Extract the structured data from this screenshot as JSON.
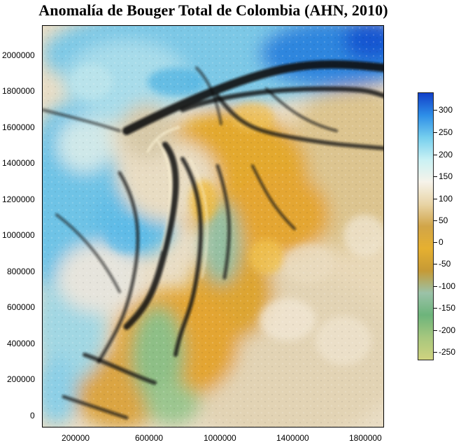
{
  "title": "Anomalía de Bouger Total de Colombia (AHN, 2010)",
  "map": {
    "x_ticks": [
      "200000",
      "600000",
      "1000000",
      "1400000",
      "1800000"
    ],
    "y_ticks": [
      "2000000",
      "1800000",
      "1600000",
      "1400000",
      "1200000",
      "1000000",
      "800000",
      "600000",
      "400000",
      "200000",
      "0"
    ],
    "x_range": [
      0,
      1900000
    ],
    "y_range": [
      -40000,
      2200000
    ],
    "palette": {
      "high": "#1a5fd6",
      "mid_high": "#6cc5e8",
      "neutral": "#f4efe3",
      "low": "#f0a81a",
      "mid_low": "#8fc28e",
      "very_low": "#c9cf7b"
    }
  },
  "colorbar": {
    "labels": [
      "300",
      "250",
      "200",
      "150",
      "100",
      "50",
      "0",
      "-50",
      "-100",
      "-150",
      "-200",
      "-250"
    ],
    "min": -280,
    "max": 340,
    "colors": [
      "#1240c8",
      "#2d8ee8",
      "#76cfee",
      "#c9f1f4",
      "#f6f3ea",
      "#e8d4a6",
      "#d1a548",
      "#e6b030",
      "#c59a36",
      "#9bc2a8",
      "#6db47b",
      "#a7c77e",
      "#cfd27f"
    ]
  }
}
